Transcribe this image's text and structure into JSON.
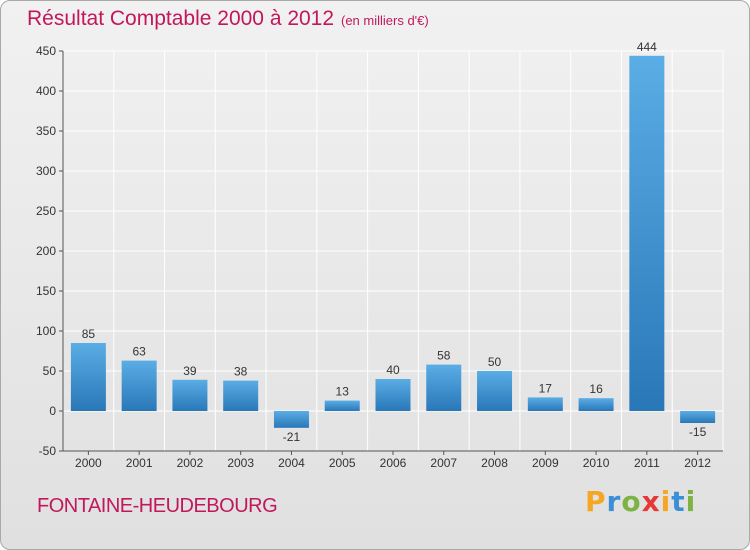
{
  "header": {
    "title": "Résultat Comptable 2000 à 2012",
    "subtitle": "(en milliers d'€)"
  },
  "footer": {
    "commune": "FONTAINE-HEUDEBOURG",
    "logo": {
      "letters": [
        "P",
        "r",
        "o",
        "x",
        "i",
        "t",
        "i"
      ],
      "colors": [
        "#f5a623",
        "#3a8fd6",
        "#7cb342",
        "#e53935",
        "#f5a623",
        "#3a8fd6",
        "#7cb342"
      ]
    }
  },
  "chart_data": {
    "type": "bar",
    "title": "Résultat Comptable 2000 à 2012",
    "subtitle": "(en milliers d'€)",
    "categories": [
      "2000",
      "2001",
      "2002",
      "2003",
      "2004",
      "2005",
      "2006",
      "2007",
      "2008",
      "2009",
      "2010",
      "2011",
      "2012"
    ],
    "values": [
      85,
      63,
      39,
      38,
      -21,
      13,
      40,
      58,
      50,
      17,
      16,
      444,
      -15
    ],
    "data_labels": [
      "85",
      "63",
      "39",
      "38",
      "-21",
      "13",
      "40",
      "58",
      "50",
      "17",
      "16",
      "444",
      "-15"
    ],
    "xlabel": "",
    "ylabel": "",
    "ylim": [
      -50,
      450
    ],
    "yticks": [
      -50,
      0,
      50,
      100,
      150,
      200,
      250,
      300,
      350,
      400,
      450
    ],
    "grid": true,
    "legend": "none",
    "colors": {
      "bar_light": "#5aade5",
      "bar_dark": "#2a77b8",
      "grid": "#ffffff",
      "axis": "#555555"
    }
  }
}
